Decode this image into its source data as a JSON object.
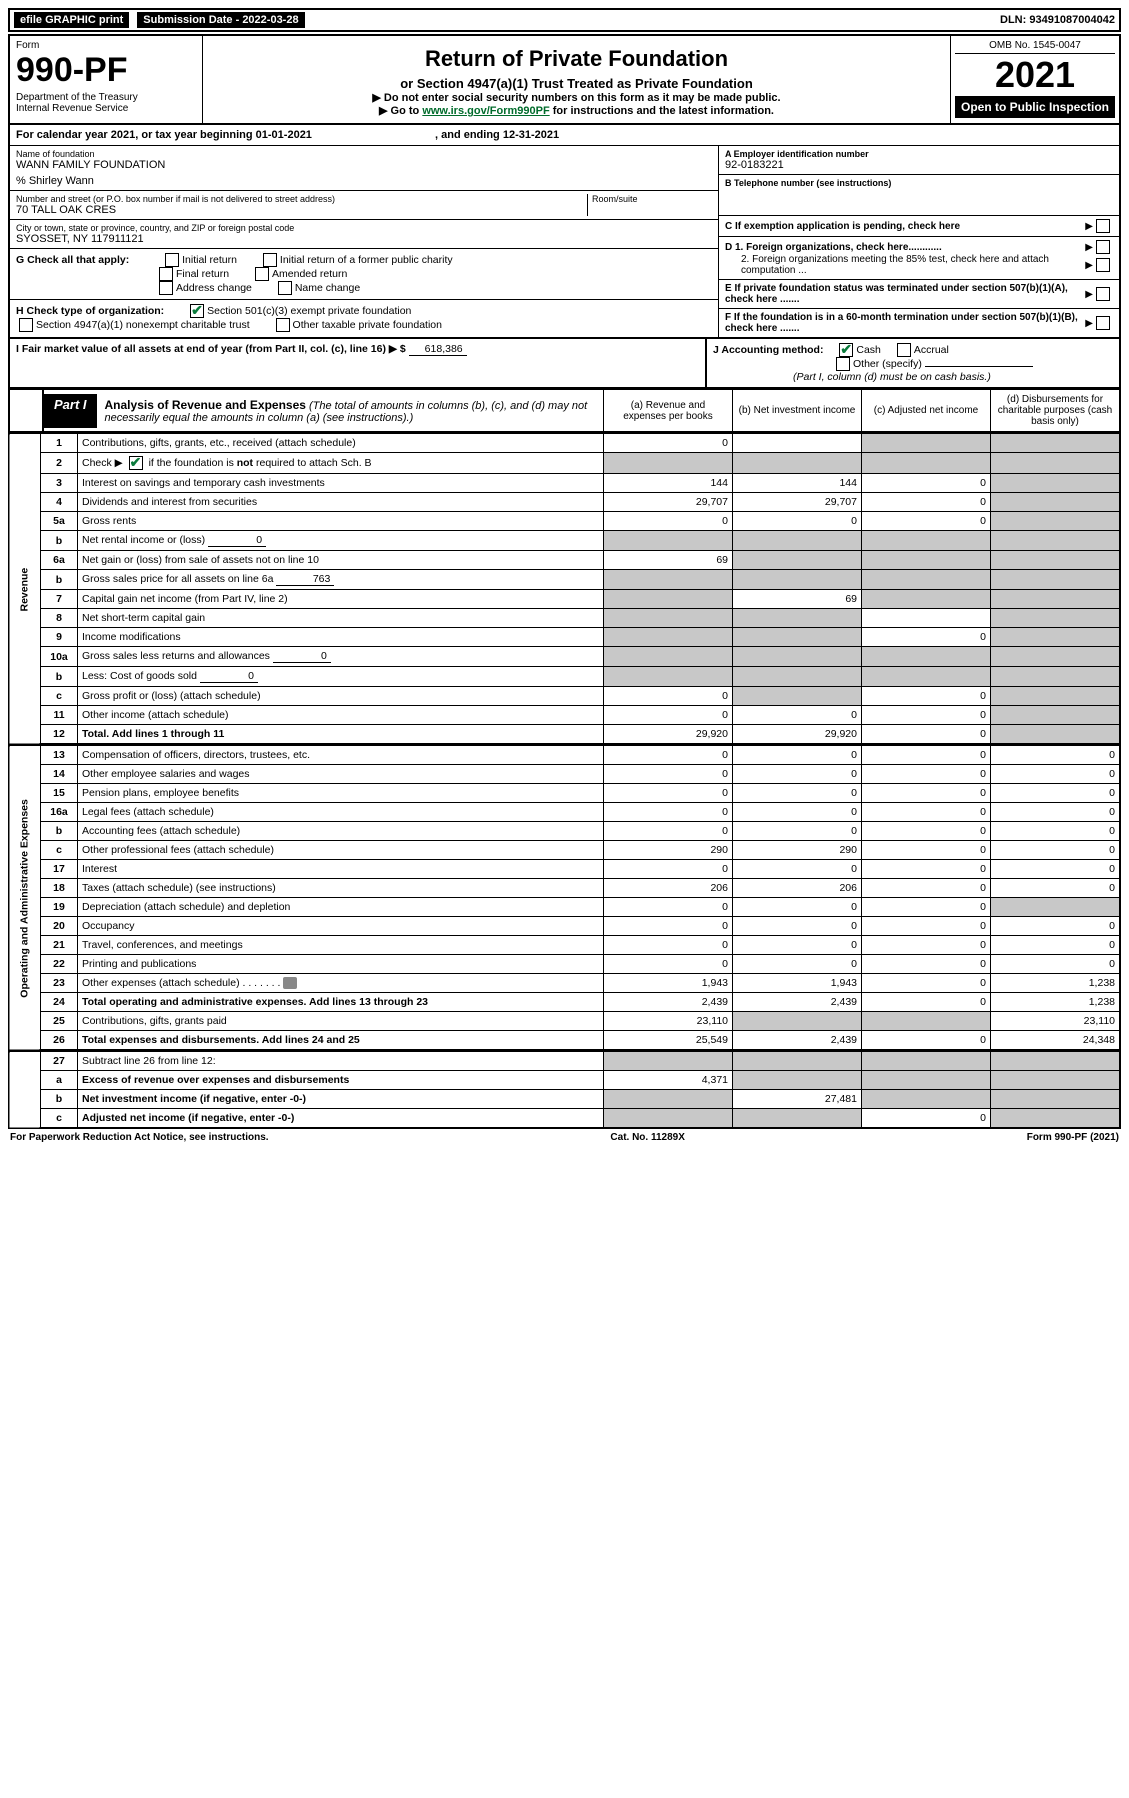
{
  "topbar": {
    "efile": "efile GRAPHIC print",
    "sub_label": "Submission Date - 2022-03-28",
    "dln": "DLN: 93491087004042"
  },
  "header": {
    "form_word": "Form",
    "form_num": "990-PF",
    "dept": "Department of the Treasury\nInternal Revenue Service",
    "title": "Return of Private Foundation",
    "subtitle": "or Section 4947(a)(1) Trust Treated as Private Foundation",
    "instr1": "▶ Do not enter social security numbers on this form as it may be made public.",
    "instr2_pre": "▶ Go to ",
    "instr2_link": "www.irs.gov/Form990PF",
    "instr2_post": " for instructions and the latest information.",
    "omb": "OMB No. 1545-0047",
    "year": "2021",
    "open": "Open to Public Inspection"
  },
  "calyear": {
    "text_pre": "For calendar year 2021, or tax year beginning ",
    "begin": "01-01-2021",
    "mid": ", and ending ",
    "end": "12-31-2021"
  },
  "entity": {
    "name_label": "Name of foundation",
    "name": "WANN FAMILY FOUNDATION",
    "care_of": "% Shirley Wann",
    "addr_label": "Number and street (or P.O. box number if mail is not delivered to street address)",
    "addr": "70 TALL OAK CRES",
    "room_label": "Room/suite",
    "room": "",
    "city_label": "City or town, state or province, country, and ZIP or foreign postal code",
    "city": "SYOSSET, NY  117911121",
    "a_label": "A Employer identification number",
    "a_val": "92-0183221",
    "b_label": "B Telephone number (see instructions)",
    "b_val": "",
    "c_label": "C If exemption application is pending, check here",
    "d1": "D 1. Foreign organizations, check here............",
    "d2": "2. Foreign organizations meeting the 85% test, check here and attach computation ...",
    "e": "E  If private foundation status was terminated under section 507(b)(1)(A), check here .......",
    "f": "F  If the foundation is in a 60-month termination under section 507(b)(1)(B), check here .......",
    "g_label": "G Check all that apply:",
    "g_opts": [
      "Initial return",
      "Initial return of a former public charity",
      "Final return",
      "Amended return",
      "Address change",
      "Name change"
    ],
    "h_label": "H Check type of organization:",
    "h1": "Section 501(c)(3) exempt private foundation",
    "h2": "Section 4947(a)(1) nonexempt charitable trust",
    "h3": "Other taxable private foundation",
    "i_label": "I Fair market value of all assets at end of year (from Part II, col. (c), line 16) ▶ $",
    "i_val": "618,386",
    "j_label": "J Accounting method:",
    "j_cash": "Cash",
    "j_accrual": "Accrual",
    "j_other": "Other (specify)",
    "j_note": "(Part I, column (d) must be on cash basis.)"
  },
  "part1": {
    "label": "Part I",
    "title": "Analysis of Revenue and Expenses",
    "note": "(The total of amounts in columns (b), (c), and (d) may not necessarily equal the amounts in column (a) (see instructions).)",
    "col_a": "(a) Revenue and expenses per books",
    "col_b": "(b) Net investment income",
    "col_c": "(c) Adjusted net income",
    "col_d": "(d) Disbursements for charitable purposes (cash basis only)"
  },
  "sections": {
    "revenue": "Revenue",
    "expenses": "Operating and Administrative Expenses"
  },
  "rows": [
    {
      "n": "1",
      "desc": "Contributions, gifts, grants, etc., received (attach schedule)",
      "a": "0",
      "b": "",
      "c": "",
      "d": "",
      "shade": [
        "c",
        "d"
      ]
    },
    {
      "n": "2",
      "desc": "Check ▶ [✔] if the foundation is not required to attach Sch. B",
      "a": "",
      "b": "",
      "c": "",
      "d": "",
      "shade": [
        "a",
        "b",
        "c",
        "d"
      ],
      "checkbox": true
    },
    {
      "n": "3",
      "desc": "Interest on savings and temporary cash investments",
      "a": "144",
      "b": "144",
      "c": "0",
      "d": "",
      "shade": [
        "d"
      ]
    },
    {
      "n": "4",
      "desc": "Dividends and interest from securities",
      "a": "29,707",
      "b": "29,707",
      "c": "0",
      "d": "",
      "shade": [
        "d"
      ]
    },
    {
      "n": "5a",
      "desc": "Gross rents",
      "a": "0",
      "b": "0",
      "c": "0",
      "d": "",
      "shade": [
        "d"
      ]
    },
    {
      "n": "b",
      "desc": "Net rental income or (loss)",
      "inline": "0",
      "a": "",
      "b": "",
      "c": "",
      "d": "",
      "shade": [
        "a",
        "b",
        "c",
        "d"
      ]
    },
    {
      "n": "6a",
      "desc": "Net gain or (loss) from sale of assets not on line 10",
      "a": "69",
      "b": "",
      "c": "",
      "d": "",
      "shade": [
        "b",
        "c",
        "d"
      ]
    },
    {
      "n": "b",
      "desc": "Gross sales price for all assets on line 6a",
      "inline": "763",
      "a": "",
      "b": "",
      "c": "",
      "d": "",
      "shade": [
        "a",
        "b",
        "c",
        "d"
      ]
    },
    {
      "n": "7",
      "desc": "Capital gain net income (from Part IV, line 2)",
      "a": "",
      "b": "69",
      "c": "",
      "d": "",
      "shade": [
        "a",
        "c",
        "d"
      ]
    },
    {
      "n": "8",
      "desc": "Net short-term capital gain",
      "a": "",
      "b": "",
      "c": "",
      "d": "",
      "shade": [
        "a",
        "b",
        "d"
      ]
    },
    {
      "n": "9",
      "desc": "Income modifications",
      "a": "",
      "b": "",
      "c": "0",
      "d": "",
      "shade": [
        "a",
        "b",
        "d"
      ]
    },
    {
      "n": "10a",
      "desc": "Gross sales less returns and allowances",
      "inline": "0",
      "a": "",
      "b": "",
      "c": "",
      "d": "",
      "shade": [
        "a",
        "b",
        "c",
        "d"
      ]
    },
    {
      "n": "b",
      "desc": "Less: Cost of goods sold",
      "inline": "0",
      "a": "",
      "b": "",
      "c": "",
      "d": "",
      "shade": [
        "a",
        "b",
        "c",
        "d"
      ]
    },
    {
      "n": "c",
      "desc": "Gross profit or (loss) (attach schedule)",
      "a": "0",
      "b": "",
      "c": "0",
      "d": "",
      "shade": [
        "b",
        "d"
      ]
    },
    {
      "n": "11",
      "desc": "Other income (attach schedule)",
      "a": "0",
      "b": "0",
      "c": "0",
      "d": "",
      "shade": [
        "d"
      ]
    },
    {
      "n": "12",
      "desc": "Total. Add lines 1 through 11",
      "bold": true,
      "a": "29,920",
      "b": "29,920",
      "c": "0",
      "d": "",
      "shade": [
        "d"
      ]
    }
  ],
  "exp_rows": [
    {
      "n": "13",
      "desc": "Compensation of officers, directors, trustees, etc.",
      "a": "0",
      "b": "0",
      "c": "0",
      "d": "0"
    },
    {
      "n": "14",
      "desc": "Other employee salaries and wages",
      "a": "0",
      "b": "0",
      "c": "0",
      "d": "0"
    },
    {
      "n": "15",
      "desc": "Pension plans, employee benefits",
      "a": "0",
      "b": "0",
      "c": "0",
      "d": "0"
    },
    {
      "n": "16a",
      "desc": "Legal fees (attach schedule)",
      "a": "0",
      "b": "0",
      "c": "0",
      "d": "0"
    },
    {
      "n": "b",
      "desc": "Accounting fees (attach schedule)",
      "a": "0",
      "b": "0",
      "c": "0",
      "d": "0"
    },
    {
      "n": "c",
      "desc": "Other professional fees (attach schedule)",
      "a": "290",
      "b": "290",
      "c": "0",
      "d": "0"
    },
    {
      "n": "17",
      "desc": "Interest",
      "a": "0",
      "b": "0",
      "c": "0",
      "d": "0"
    },
    {
      "n": "18",
      "desc": "Taxes (attach schedule) (see instructions)",
      "a": "206",
      "b": "206",
      "c": "0",
      "d": "0"
    },
    {
      "n": "19",
      "desc": "Depreciation (attach schedule) and depletion",
      "a": "0",
      "b": "0",
      "c": "0",
      "d": "",
      "shade": [
        "d"
      ]
    },
    {
      "n": "20",
      "desc": "Occupancy",
      "a": "0",
      "b": "0",
      "c": "0",
      "d": "0"
    },
    {
      "n": "21",
      "desc": "Travel, conferences, and meetings",
      "a": "0",
      "b": "0",
      "c": "0",
      "d": "0"
    },
    {
      "n": "22",
      "desc": "Printing and publications",
      "a": "0",
      "b": "0",
      "c": "0",
      "d": "0"
    },
    {
      "n": "23",
      "desc": "Other expenses (attach schedule)",
      "icon": true,
      "a": "1,943",
      "b": "1,943",
      "c": "0",
      "d": "1,238"
    },
    {
      "n": "24",
      "desc": "Total operating and administrative expenses. Add lines 13 through 23",
      "bold": true,
      "a": "2,439",
      "b": "2,439",
      "c": "0",
      "d": "1,238"
    },
    {
      "n": "25",
      "desc": "Contributions, gifts, grants paid",
      "a": "23,110",
      "b": "",
      "c": "",
      "d": "23,110",
      "shade": [
        "b",
        "c"
      ]
    },
    {
      "n": "26",
      "desc": "Total expenses and disbursements. Add lines 24 and 25",
      "bold": true,
      "a": "25,549",
      "b": "2,439",
      "c": "0",
      "d": "24,348"
    }
  ],
  "bottom_rows": [
    {
      "n": "27",
      "desc": "Subtract line 26 from line 12:",
      "a": "",
      "b": "",
      "c": "",
      "d": "",
      "shade": [
        "a",
        "b",
        "c",
        "d"
      ]
    },
    {
      "n": "a",
      "desc": "Excess of revenue over expenses and disbursements",
      "bold": true,
      "a": "4,371",
      "b": "",
      "c": "",
      "d": "",
      "shade": [
        "b",
        "c",
        "d"
      ]
    },
    {
      "n": "b",
      "desc": "Net investment income (if negative, enter -0-)",
      "bold": true,
      "a": "",
      "b": "27,481",
      "c": "",
      "d": "",
      "shade": [
        "a",
        "c",
        "d"
      ]
    },
    {
      "n": "c",
      "desc": "Adjusted net income (if negative, enter -0-)",
      "bold": true,
      "a": "",
      "b": "",
      "c": "0",
      "d": "",
      "shade": [
        "a",
        "b",
        "d"
      ]
    }
  ],
  "footer": {
    "left": "For Paperwork Reduction Act Notice, see instructions.",
    "mid": "Cat. No. 11289X",
    "right": "Form 990-PF (2021)"
  }
}
